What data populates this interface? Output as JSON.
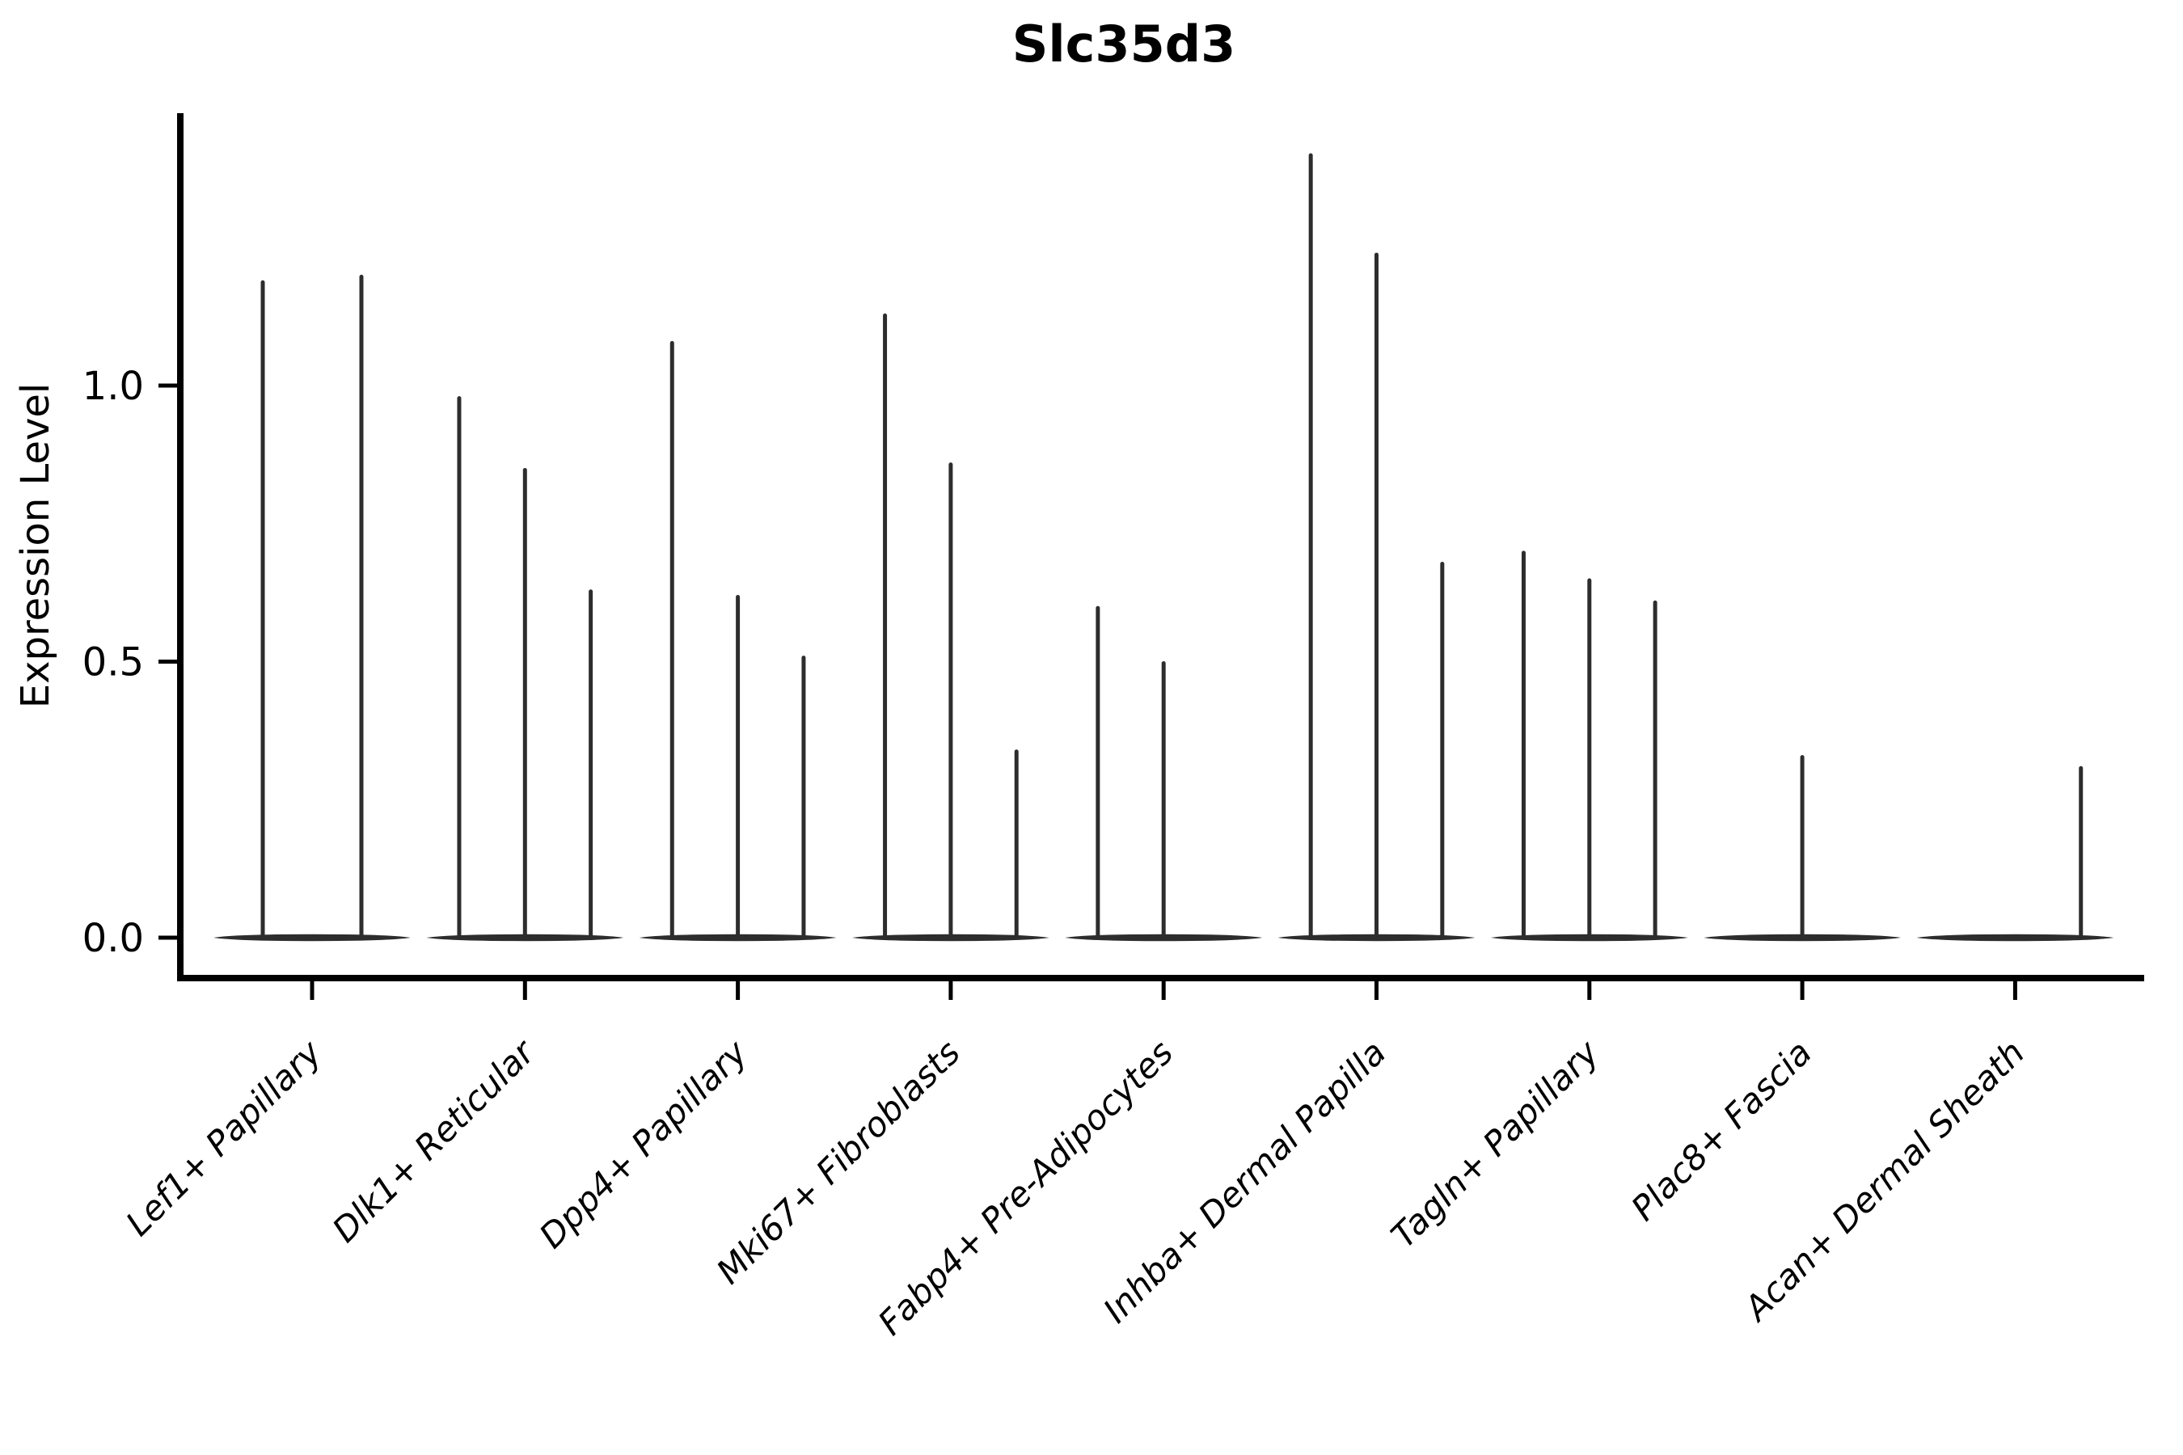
{
  "chart_data": {
    "type": "violin",
    "title": "Slc35d3",
    "xlabel": "",
    "ylabel": "Expression Level",
    "yticks": [
      {
        "label": "0.0",
        "value": 0.0
      },
      {
        "label": "0.5",
        "value": 0.5
      },
      {
        "label": "1.0",
        "value": 1.0
      }
    ],
    "ylim": [
      -0.07,
      1.49
    ],
    "grid": false,
    "legend_position": "none",
    "violin_color": "#2d2d2d",
    "axis_color": "#000000",
    "categories": [
      "Lef1+ Papillary",
      "Dlk1+ Reticular",
      "Dpp4+ Papillary",
      "Mki67+ Fibroblasts",
      "Fabp4+ Pre-Adipocytes",
      "Inhba+ Dermal Papilla",
      "Tagln+ Papillary",
      "Plac8+ Fascia",
      "Acan+ Dermal Sheath"
    ],
    "violins": [
      {
        "category": "Lef1+ Papillary",
        "spikes": [
          1.19,
          1.2
        ]
      },
      {
        "category": "Dlk1+ Reticular",
        "spikes": [
          0.98,
          0.85,
          0.63
        ]
      },
      {
        "category": "Dpp4+ Papillary",
        "spikes": [
          1.08,
          0.62,
          0.51
        ]
      },
      {
        "category": "Mki67+ Fibroblasts",
        "spikes": [
          1.13,
          0.86,
          0.34
        ]
      },
      {
        "category": "Fabp4+ Pre-Adipocytes",
        "spikes": [
          0.6,
          0.5,
          null
        ]
      },
      {
        "category": "Inhba+ Dermal Papilla",
        "spikes": [
          1.42,
          1.24,
          0.68
        ]
      },
      {
        "category": "Tagln+ Papillary",
        "spikes": [
          0.7,
          0.65,
          0.61
        ]
      },
      {
        "category": "Plac8+ Fascia",
        "spikes": [
          null,
          0.33,
          null
        ]
      },
      {
        "category": "Acan+ Dermal Sheath",
        "spikes": [
          null,
          null,
          0.31
        ]
      }
    ]
  }
}
